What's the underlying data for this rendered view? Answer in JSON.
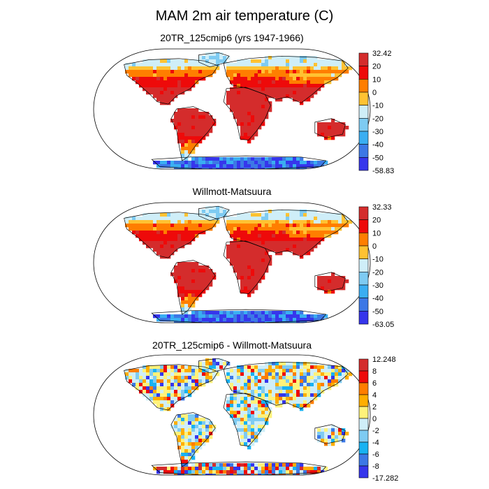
{
  "title": "MAM 2m air temperature (C)",
  "panels": [
    {
      "title": "20TR_125cmip6 (yrs 1947-1966)",
      "scheme": "abs",
      "colorbar": {
        "labels": [
          "32.42",
          "20",
          "10",
          "0",
          "-10",
          "-20",
          "-30",
          "-40",
          "-50",
          "-58.83"
        ],
        "colors": [
          "#d42c2c",
          "#ee0a0a",
          "#ff7e00",
          "#ffc232",
          "#cfeef8",
          "#7ecbf2",
          "#3aaef2",
          "#3c78e6",
          "#3636ec"
        ]
      }
    },
    {
      "title": "Willmott-Matsuura",
      "scheme": "abs",
      "colorbar": {
        "labels": [
          "32.33",
          "20",
          "10",
          "0",
          "-10",
          "-20",
          "-30",
          "-40",
          "-50",
          "-63.05"
        ],
        "colors": [
          "#d42c2c",
          "#ee0a0a",
          "#ff7e00",
          "#ffc232",
          "#cfeef8",
          "#7ecbf2",
          "#3aaef2",
          "#3c78e6",
          "#3636ec"
        ]
      }
    },
    {
      "title": "20TR_125cmip6 - Willmott-Matsuura",
      "scheme": "diff",
      "colorbar": {
        "labels": [
          "12.248",
          "8",
          "6",
          "4",
          "2",
          "0",
          "-2",
          "-4",
          "-6",
          "-8",
          "-17.282"
        ],
        "colors": [
          "#d42c2c",
          "#ee0a0a",
          "#ff7e00",
          "#ffae00",
          "#fff27a",
          "#cfeef8",
          "#7ecbf2",
          "#18b2f2",
          "#3c78e6",
          "#3636ec"
        ]
      }
    }
  ]
}
